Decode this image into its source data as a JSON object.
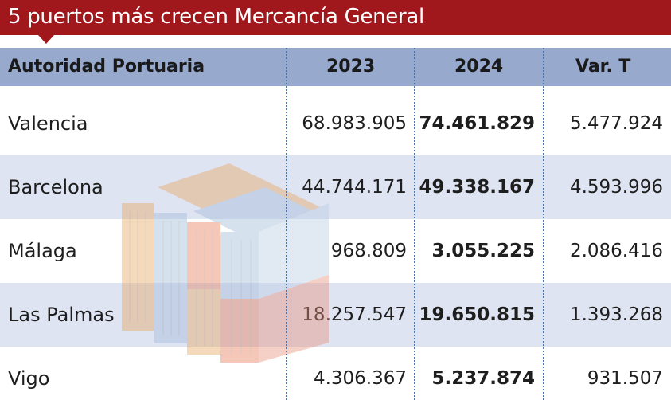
{
  "title": "5 puertos más crecen Mercancía General",
  "colors": {
    "title_bg": "#a0171c",
    "header_bg": "#97a9cd",
    "row_stripe": "#dfe4f2",
    "divider": "#4a74b0"
  },
  "chart_data": {
    "type": "table",
    "title": "5 puertos más crecen Mercancía General",
    "columns": [
      "Autoridad Portuaria",
      "2023",
      "2024",
      "Var. T"
    ],
    "rows": [
      {
        "name": "Valencia",
        "y2023": "68.983.905",
        "y2024": "74.461.829",
        "var": "5.477.924"
      },
      {
        "name": "Barcelona",
        "y2023": "44.744.171",
        "y2024": "49.338.167",
        "var": "4.593.996"
      },
      {
        "name": "Málaga",
        "y2023": "968.809",
        "y2024": "3.055.225",
        "var": "2.086.416"
      },
      {
        "name": "Las Palmas",
        "y2023": "18.257.547",
        "y2024": "19.650.815",
        "var": "1.393.268"
      },
      {
        "name": "Vigo",
        "y2023": "4.306.367",
        "y2024": "5.237.874",
        "var": "931.507"
      }
    ]
  }
}
